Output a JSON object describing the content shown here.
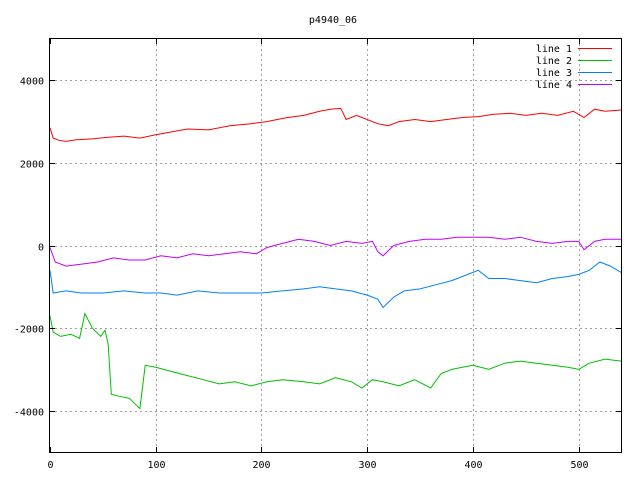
{
  "chart_data": {
    "type": "line",
    "title": "p4940_06",
    "xlabel": "",
    "ylabel": "",
    "xlim": [
      0,
      540
    ],
    "ylim": [
      -5000,
      5000
    ],
    "xticks": [
      0,
      100,
      200,
      300,
      400,
      500
    ],
    "yticks": [
      -4000,
      -2000,
      0,
      2000,
      4000
    ],
    "grid": true,
    "legend_position": "top-right",
    "series": [
      {
        "name": "line 1",
        "color": "#ff0000",
        "points": [
          [
            0,
            2850
          ],
          [
            3,
            2600
          ],
          [
            8,
            2550
          ],
          [
            15,
            2520
          ],
          [
            25,
            2560
          ],
          [
            40,
            2580
          ],
          [
            55,
            2620
          ],
          [
            70,
            2650
          ],
          [
            85,
            2600
          ],
          [
            100,
            2680
          ],
          [
            115,
            2750
          ],
          [
            130,
            2820
          ],
          [
            150,
            2800
          ],
          [
            170,
            2900
          ],
          [
            190,
            2950
          ],
          [
            205,
            3000
          ],
          [
            215,
            3050
          ],
          [
            225,
            3100
          ],
          [
            240,
            3150
          ],
          [
            255,
            3250
          ],
          [
            265,
            3300
          ],
          [
            275,
            3320
          ],
          [
            280,
            3050
          ],
          [
            290,
            3150
          ],
          [
            300,
            3050
          ],
          [
            310,
            2950
          ],
          [
            320,
            2900
          ],
          [
            330,
            3000
          ],
          [
            345,
            3050
          ],
          [
            360,
            3000
          ],
          [
            375,
            3050
          ],
          [
            390,
            3100
          ],
          [
            405,
            3120
          ],
          [
            420,
            3180
          ],
          [
            435,
            3200
          ],
          [
            450,
            3150
          ],
          [
            465,
            3200
          ],
          [
            480,
            3150
          ],
          [
            495,
            3250
          ],
          [
            505,
            3100
          ],
          [
            515,
            3300
          ],
          [
            525,
            3250
          ],
          [
            540,
            3280
          ]
        ]
      },
      {
        "name": "line 2",
        "color": "#00c000",
        "points": [
          [
            0,
            -1700
          ],
          [
            3,
            -2100
          ],
          [
            10,
            -2200
          ],
          [
            20,
            -2150
          ],
          [
            28,
            -2250
          ],
          [
            33,
            -1650
          ],
          [
            40,
            -2000
          ],
          [
            48,
            -2200
          ],
          [
            52,
            -2050
          ],
          [
            55,
            -2400
          ],
          [
            58,
            -3600
          ],
          [
            65,
            -3650
          ],
          [
            75,
            -3700
          ],
          [
            85,
            -3950
          ],
          [
            90,
            -2900
          ],
          [
            100,
            -2950
          ],
          [
            115,
            -3050
          ],
          [
            130,
            -3150
          ],
          [
            145,
            -3250
          ],
          [
            160,
            -3350
          ],
          [
            175,
            -3300
          ],
          [
            190,
            -3400
          ],
          [
            205,
            -3300
          ],
          [
            220,
            -3250
          ],
          [
            240,
            -3300
          ],
          [
            255,
            -3350
          ],
          [
            270,
            -3200
          ],
          [
            285,
            -3300
          ],
          [
            295,
            -3450
          ],
          [
            305,
            -3250
          ],
          [
            315,
            -3300
          ],
          [
            330,
            -3400
          ],
          [
            345,
            -3250
          ],
          [
            360,
            -3450
          ],
          [
            370,
            -3100
          ],
          [
            380,
            -3000
          ],
          [
            390,
            -2950
          ],
          [
            400,
            -2900
          ],
          [
            415,
            -3000
          ],
          [
            430,
            -2850
          ],
          [
            445,
            -2800
          ],
          [
            460,
            -2850
          ],
          [
            475,
            -2900
          ],
          [
            490,
            -2950
          ],
          [
            500,
            -3000
          ],
          [
            510,
            -2850
          ],
          [
            525,
            -2750
          ],
          [
            540,
            -2800
          ]
        ]
      },
      {
        "name": "line 3",
        "color": "#0080ff",
        "points": [
          [
            0,
            -600
          ],
          [
            3,
            -1150
          ],
          [
            15,
            -1100
          ],
          [
            30,
            -1150
          ],
          [
            50,
            -1150
          ],
          [
            70,
            -1100
          ],
          [
            90,
            -1150
          ],
          [
            105,
            -1150
          ],
          [
            120,
            -1200
          ],
          [
            140,
            -1100
          ],
          [
            160,
            -1150
          ],
          [
            180,
            -1150
          ],
          [
            200,
            -1150
          ],
          [
            220,
            -1100
          ],
          [
            240,
            -1050
          ],
          [
            255,
            -1000
          ],
          [
            270,
            -1050
          ],
          [
            285,
            -1100
          ],
          [
            300,
            -1200
          ],
          [
            310,
            -1300
          ],
          [
            315,
            -1500
          ],
          [
            325,
            -1250
          ],
          [
            335,
            -1100
          ],
          [
            350,
            -1050
          ],
          [
            365,
            -950
          ],
          [
            380,
            -850
          ],
          [
            395,
            -700
          ],
          [
            405,
            -600
          ],
          [
            415,
            -800
          ],
          [
            430,
            -800
          ],
          [
            445,
            -850
          ],
          [
            460,
            -900
          ],
          [
            475,
            -800
          ],
          [
            490,
            -750
          ],
          [
            500,
            -700
          ],
          [
            510,
            -600
          ],
          [
            520,
            -400
          ],
          [
            530,
            -500
          ],
          [
            540,
            -650
          ]
        ]
      },
      {
        "name": "line 4",
        "color": "#c000ff",
        "points": [
          [
            0,
            -50
          ],
          [
            5,
            -400
          ],
          [
            15,
            -500
          ],
          [
            30,
            -450
          ],
          [
            45,
            -400
          ],
          [
            60,
            -300
          ],
          [
            75,
            -350
          ],
          [
            90,
            -350
          ],
          [
            105,
            -250
          ],
          [
            120,
            -300
          ],
          [
            135,
            -200
          ],
          [
            150,
            -250
          ],
          [
            165,
            -200
          ],
          [
            180,
            -150
          ],
          [
            195,
            -200
          ],
          [
            205,
            -50
          ],
          [
            220,
            50
          ],
          [
            235,
            150
          ],
          [
            250,
            100
          ],
          [
            265,
            0
          ],
          [
            280,
            100
          ],
          [
            295,
            50
          ],
          [
            305,
            100
          ],
          [
            310,
            -150
          ],
          [
            315,
            -250
          ],
          [
            325,
            0
          ],
          [
            340,
            100
          ],
          [
            355,
            150
          ],
          [
            370,
            150
          ],
          [
            385,
            200
          ],
          [
            400,
            200
          ],
          [
            415,
            200
          ],
          [
            430,
            150
          ],
          [
            445,
            200
          ],
          [
            460,
            100
          ],
          [
            475,
            50
          ],
          [
            490,
            100
          ],
          [
            500,
            100
          ],
          [
            505,
            -100
          ],
          [
            515,
            100
          ],
          [
            525,
            150
          ],
          [
            540,
            150
          ]
        ]
      }
    ]
  }
}
